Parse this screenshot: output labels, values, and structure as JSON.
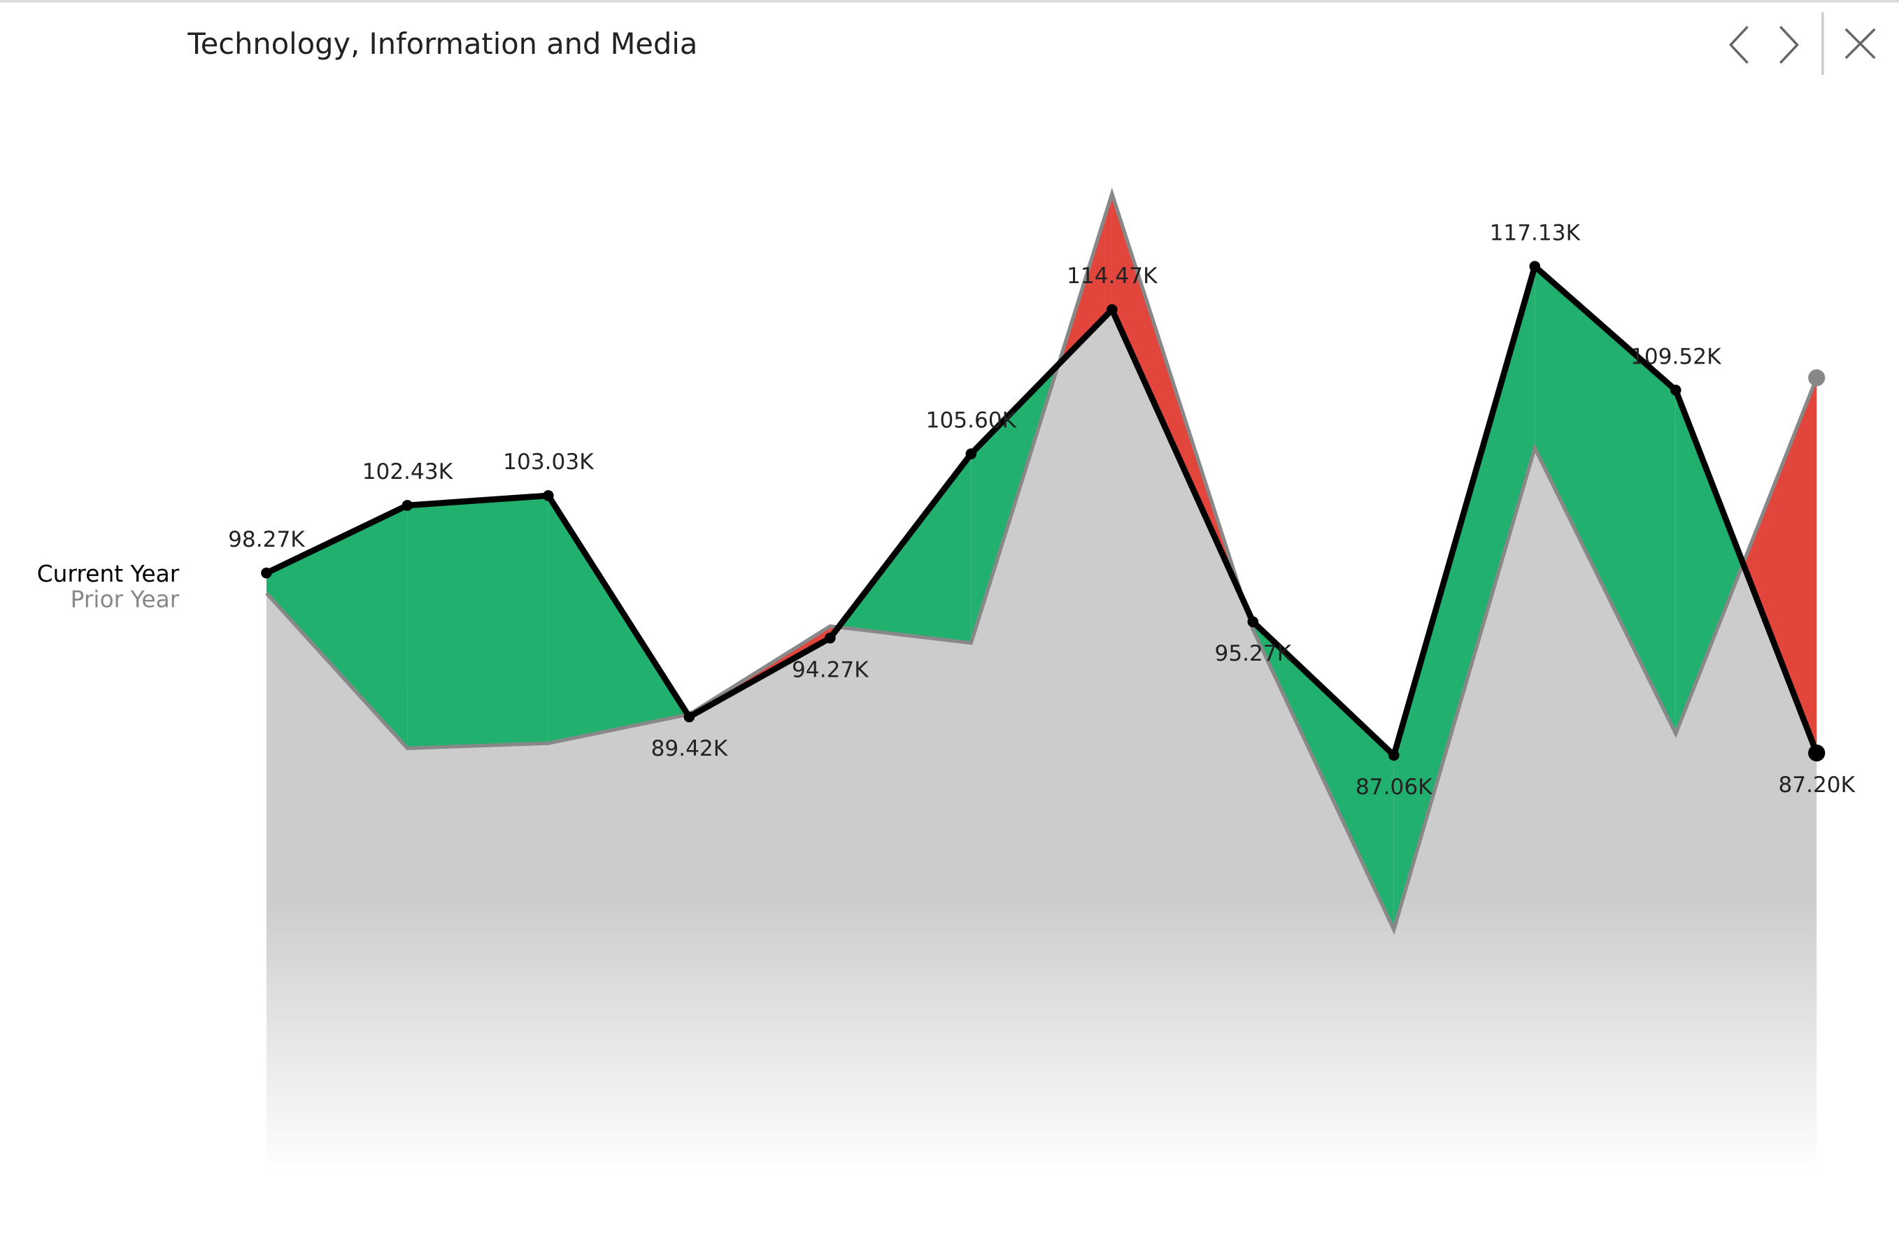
{
  "chart_data": {
    "type": "line-difference",
    "title": "Technology, Information and Media",
    "series": [
      {
        "name": "Current Year",
        "color": "#000000",
        "values": [
          98.27,
          102.43,
          103.03,
          89.42,
          94.27,
          105.6,
          114.47,
          95.27,
          87.06,
          117.13,
          109.52,
          87.2
        ],
        "value_labels": [
          "98.27K",
          "102.43K",
          "103.03K",
          "89.42K",
          "94.27K",
          "105.60K",
          "114.47K",
          "95.27K",
          "87.06K",
          "117.13K",
          "109.52K",
          "87.20K"
        ]
      },
      {
        "name": "Prior Year",
        "color": "#888888",
        "values": [
          97.03,
          87.49,
          87.8,
          89.58,
          95.0,
          93.97,
          121.6,
          94.8,
          76.33,
          105.96,
          88.39,
          110.28
        ]
      }
    ],
    "increase_color": "#21B06D",
    "decrease_color": "#E2453C",
    "area_color": "#CCCCCC"
  }
}
